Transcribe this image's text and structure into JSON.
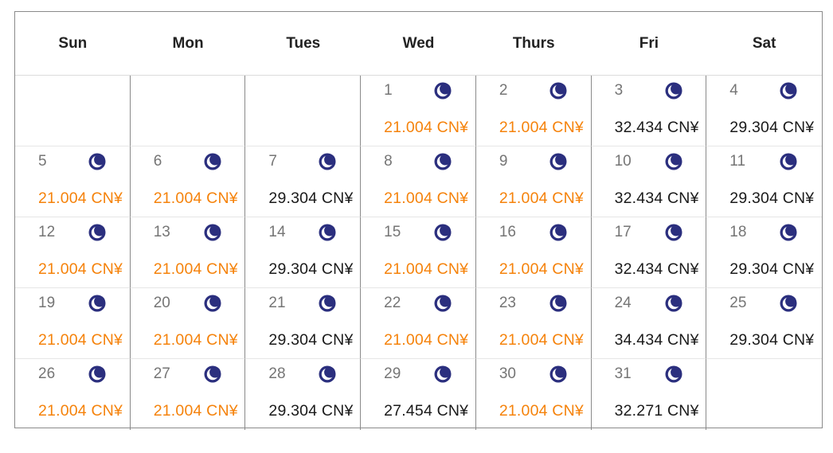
{
  "weekdays": [
    "Sun",
    "Mon",
    "Tues",
    "Wed",
    "Thurs",
    "Fri",
    "Sat"
  ],
  "colors": {
    "discount_price": "#f5820a",
    "regular_price": "#1a1a1a",
    "moon_icon": "#2b2f7e"
  },
  "leading_blank_days": 3,
  "days": [
    {
      "day": "1",
      "price": "21.004 CN¥",
      "discount": true,
      "icon": "moon-icon"
    },
    {
      "day": "2",
      "price": "21.004 CN¥",
      "discount": true,
      "icon": "moon-icon"
    },
    {
      "day": "3",
      "price": "32.434 CN¥",
      "discount": false,
      "icon": "moon-icon"
    },
    {
      "day": "4",
      "price": "29.304 CN¥",
      "discount": false,
      "icon": "moon-icon"
    },
    {
      "day": "5",
      "price": "21.004 CN¥",
      "discount": true,
      "icon": "moon-icon"
    },
    {
      "day": "6",
      "price": "21.004 CN¥",
      "discount": true,
      "icon": "moon-icon"
    },
    {
      "day": "7",
      "price": "29.304 CN¥",
      "discount": false,
      "icon": "moon-icon"
    },
    {
      "day": "8",
      "price": "21.004 CN¥",
      "discount": true,
      "icon": "moon-icon"
    },
    {
      "day": "9",
      "price": "21.004 CN¥",
      "discount": true,
      "icon": "moon-icon"
    },
    {
      "day": "10",
      "price": "32.434 CN¥",
      "discount": false,
      "icon": "moon-icon"
    },
    {
      "day": "11",
      "price": "29.304 CN¥",
      "discount": false,
      "icon": "moon-icon"
    },
    {
      "day": "12",
      "price": "21.004 CN¥",
      "discount": true,
      "icon": "moon-icon"
    },
    {
      "day": "13",
      "price": "21.004 CN¥",
      "discount": true,
      "icon": "moon-icon"
    },
    {
      "day": "14",
      "price": "29.304 CN¥",
      "discount": false,
      "icon": "moon-icon"
    },
    {
      "day": "15",
      "price": "21.004 CN¥",
      "discount": true,
      "icon": "moon-icon"
    },
    {
      "day": "16",
      "price": "21.004 CN¥",
      "discount": true,
      "icon": "moon-icon"
    },
    {
      "day": "17",
      "price": "32.434 CN¥",
      "discount": false,
      "icon": "moon-icon"
    },
    {
      "day": "18",
      "price": "29.304 CN¥",
      "discount": false,
      "icon": "moon-icon"
    },
    {
      "day": "19",
      "price": "21.004 CN¥",
      "discount": true,
      "icon": "moon-icon"
    },
    {
      "day": "20",
      "price": "21.004 CN¥",
      "discount": true,
      "icon": "moon-icon"
    },
    {
      "day": "21",
      "price": "29.304 CN¥",
      "discount": false,
      "icon": "moon-icon"
    },
    {
      "day": "22",
      "price": "21.004 CN¥",
      "discount": true,
      "icon": "moon-icon"
    },
    {
      "day": "23",
      "price": "21.004 CN¥",
      "discount": true,
      "icon": "moon-icon"
    },
    {
      "day": "24",
      "price": "34.434 CN¥",
      "discount": false,
      "icon": "moon-icon"
    },
    {
      "day": "25",
      "price": "29.304 CN¥",
      "discount": false,
      "icon": "moon-icon"
    },
    {
      "day": "26",
      "price": "21.004 CN¥",
      "discount": true,
      "icon": "moon-icon"
    },
    {
      "day": "27",
      "price": "21.004 CN¥",
      "discount": true,
      "icon": "moon-icon"
    },
    {
      "day": "28",
      "price": "29.304 CN¥",
      "discount": false,
      "icon": "moon-icon"
    },
    {
      "day": "29",
      "price": "27.454 CN¥",
      "discount": false,
      "icon": "moon-icon"
    },
    {
      "day": "30",
      "price": "21.004 CN¥",
      "discount": true,
      "icon": "moon-icon"
    },
    {
      "day": "31",
      "price": "32.271 CN¥",
      "discount": false,
      "icon": "moon-icon"
    }
  ]
}
